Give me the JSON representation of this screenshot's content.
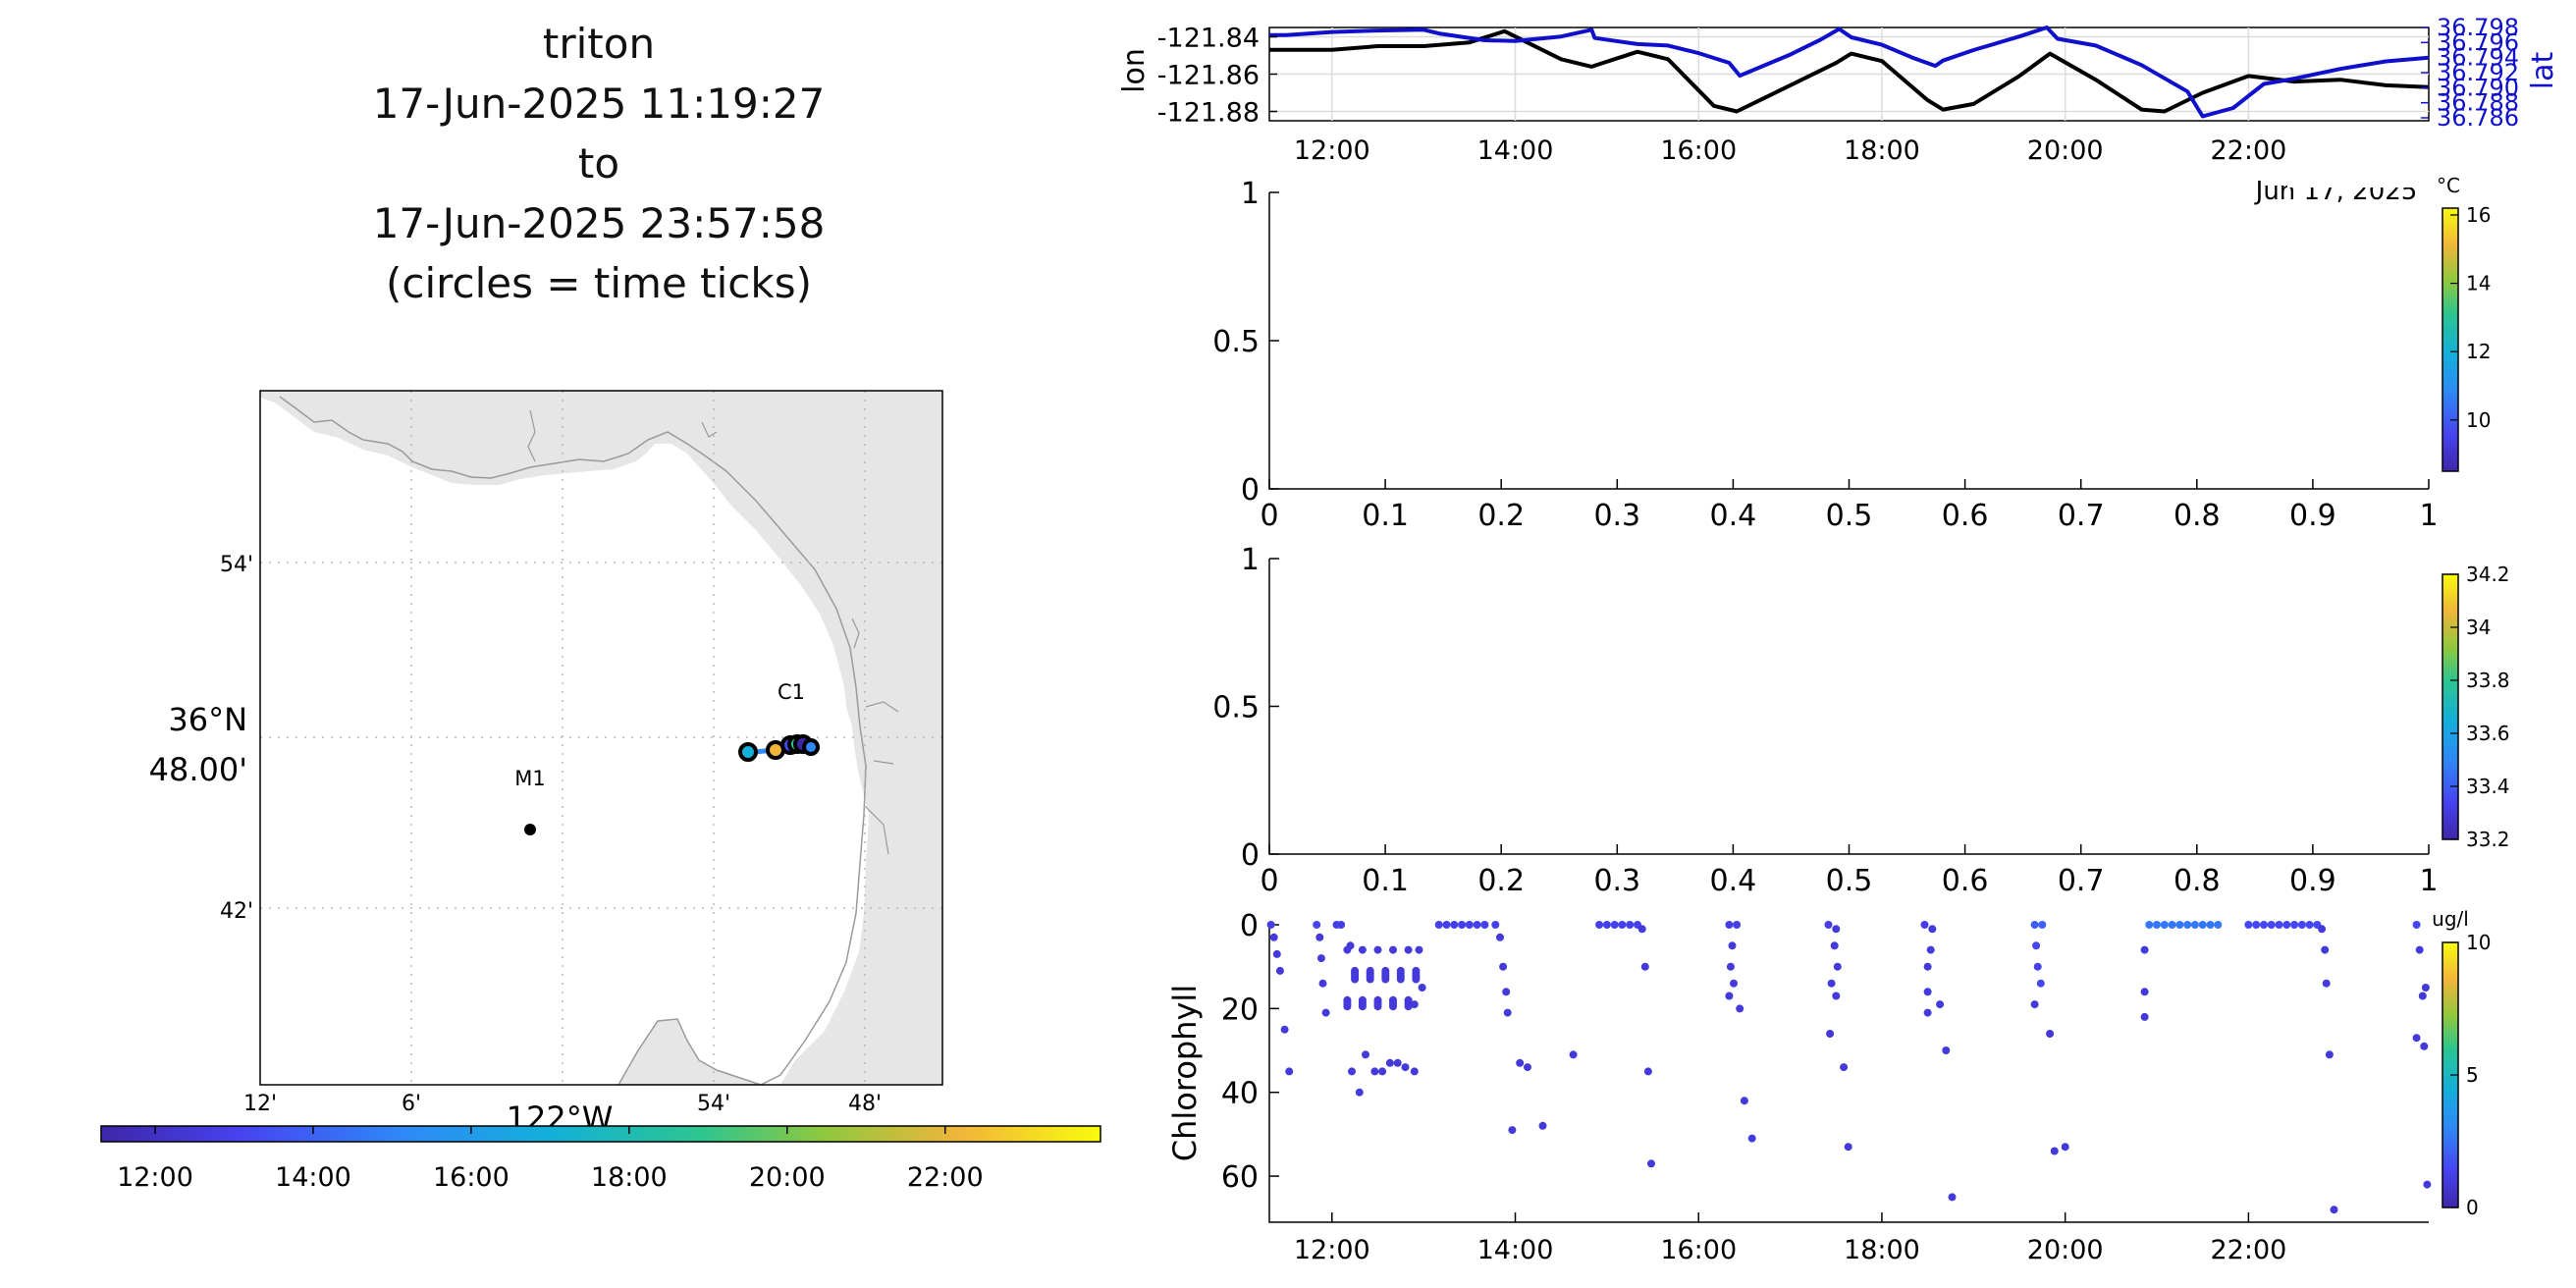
{
  "header": {
    "vehicle": "triton",
    "start_time": "17-Jun-2025 11:19:27",
    "connector": "to",
    "end_time": "17-Jun-2025 23:57:58",
    "note": "(circles = time ticks)"
  },
  "map": {
    "lat_ticks": [
      "54'",
      "48.00'",
      "42'"
    ],
    "lat_label": "36°N",
    "lon_ticks": [
      "12'",
      "6'",
      "54'",
      "48'"
    ],
    "lon_label": "122°W",
    "stations": [
      {
        "name": "C1"
      },
      {
        "name": "M1"
      }
    ],
    "colors": {
      "land": "#e6e6e6",
      "coast": "#9a9a9a",
      "grid": "#b8b8b8"
    }
  },
  "time_colorbar": {
    "ticks": [
      "12:00",
      "14:00",
      "16:00",
      "18:00",
      "20:00",
      "22:00"
    ],
    "colormap": [
      "#3e26a8",
      "#4743f0",
      "#2f88f8",
      "#13b0d9",
      "#2dc58f",
      "#8dc83f",
      "#f1b53a",
      "#f9fb0e"
    ]
  },
  "chart_data": [
    {
      "type": "line",
      "title": "",
      "xlabel": "Jun 17, 2025",
      "x_ticks": [
        "12:00",
        "14:00",
        "16:00",
        "18:00",
        "20:00",
        "22:00"
      ],
      "xlim": [
        "11:19",
        "23:58"
      ],
      "left_axis": {
        "label": "lon",
        "ticks": [
          "-121.84",
          "-121.86",
          "-121.88"
        ],
        "ylim": [
          -121.885,
          -121.835
        ]
      },
      "right_axis": {
        "label": "lat",
        "ticks": [
          "36.798",
          "36.796",
          "36.794",
          "36.792",
          "36.790",
          "36.788",
          "36.786"
        ],
        "ylim": [
          36.786,
          36.798
        ]
      },
      "grid": true,
      "series": [
        {
          "name": "lon",
          "axis": "left",
          "color": "#000000",
          "x": [
            "11:19",
            "12:00",
            "12:30",
            "13:00",
            "13:30",
            "13:53",
            "14:30",
            "14:50",
            "15:20",
            "15:40",
            "16:10",
            "16:25",
            "16:35",
            "17:00",
            "17:30",
            "17:40",
            "18:00",
            "18:30",
            "18:40",
            "19:00",
            "19:30",
            "19:50",
            "20:20",
            "20:50",
            "21:05",
            "21:30",
            "22:00",
            "22:30",
            "23:00",
            "23:30",
            "23:58"
          ],
          "values": [
            -121.847,
            -121.847,
            -121.845,
            -121.845,
            -121.843,
            -121.837,
            -121.852,
            -121.856,
            -121.848,
            -121.852,
            -121.877,
            -121.88,
            -121.876,
            -121.866,
            -121.854,
            -121.849,
            -121.853,
            -121.874,
            -121.879,
            -121.876,
            -121.861,
            -121.849,
            -121.863,
            -121.879,
            -121.88,
            -121.87,
            -121.861,
            -121.864,
            -121.863,
            -121.866,
            -121.867
          ]
        },
        {
          "name": "lat",
          "axis": "right",
          "color": "#1010cc",
          "x": [
            "11:19",
            "11:30",
            "12:00",
            "12:30",
            "13:00",
            "13:10",
            "13:40",
            "14:00",
            "14:30",
            "14:50",
            "14:52",
            "15:20",
            "15:40",
            "16:00",
            "16:20",
            "16:27",
            "16:40",
            "17:00",
            "17:20",
            "17:32",
            "17:40",
            "18:00",
            "18:20",
            "18:35",
            "18:40",
            "19:00",
            "19:30",
            "19:48",
            "19:55",
            "20:20",
            "20:50",
            "21:20",
            "21:30",
            "21:50",
            "22:10",
            "22:30",
            "23:00",
            "23:30",
            "23:58"
          ],
          "values": [
            36.797,
            36.797,
            36.7974,
            36.7976,
            36.7977,
            36.7972,
            36.7963,
            36.7962,
            36.7968,
            36.7977,
            36.7966,
            36.7958,
            36.7956,
            36.7946,
            36.7933,
            36.7916,
            36.7927,
            36.7944,
            36.7964,
            36.7978,
            36.7967,
            36.7957,
            36.794,
            36.7929,
            36.7936,
            36.795,
            36.7968,
            36.798,
            36.7965,
            36.7956,
            36.793,
            36.7895,
            36.7862,
            36.7873,
            36.7905,
            36.7912,
            36.7925,
            36.7935,
            36.794
          ]
        }
      ]
    },
    {
      "type": "scatter",
      "title": "",
      "xlabel": "",
      "ylabel": "",
      "x_ticks": [
        "0",
        "0.1",
        "0.2",
        "0.3",
        "0.4",
        "0.5",
        "0.6",
        "0.7",
        "0.8",
        "0.9",
        "1"
      ],
      "y_ticks": [
        "0",
        "0.5",
        "1"
      ],
      "xlim": [
        0,
        1
      ],
      "ylim": [
        0,
        1
      ],
      "points": [],
      "colorbar": {
        "unit": "°C",
        "ticks": [
          "16",
          "14",
          "12",
          "10"
        ],
        "clim": [
          8.5,
          16.2
        ]
      }
    },
    {
      "type": "scatter",
      "title": "",
      "xlabel": "",
      "ylabel": "",
      "x_ticks": [
        "0",
        "0.1",
        "0.2",
        "0.3",
        "0.4",
        "0.5",
        "0.6",
        "0.7",
        "0.8",
        "0.9",
        "1"
      ],
      "y_ticks": [
        "0",
        "0.5",
        "1"
      ],
      "xlim": [
        0,
        1
      ],
      "ylim": [
        0,
        1
      ],
      "points": [],
      "colorbar": {
        "unit": "",
        "ticks": [
          "34.2",
          "34",
          "33.8",
          "33.6",
          "33.4",
          "33.2"
        ],
        "clim": [
          33.2,
          34.2
        ]
      }
    },
    {
      "type": "scatter",
      "title": "",
      "xlabel": "",
      "ylabel": "Chlorophyll",
      "x_ticks": [
        "12:00",
        "14:00",
        "16:00",
        "18:00",
        "20:00",
        "22:00"
      ],
      "y_ticks": [
        "0",
        "20",
        "40",
        "60"
      ],
      "xlim": [
        "11:19",
        "23:58"
      ],
      "ylim": [
        71,
        0
      ],
      "y_reversed": true,
      "colorbar": {
        "unit": "ug/l",
        "ticks": [
          "10",
          "5",
          "0"
        ],
        "clim": [
          0,
          10
        ]
      },
      "points": [
        [
          "11:20",
          0,
          1.2
        ],
        [
          "11:22",
          3,
          1
        ],
        [
          "11:24",
          7,
          1
        ],
        [
          "11:26",
          11,
          1
        ],
        [
          "11:29",
          25,
          1
        ],
        [
          "11:32",
          35,
          1
        ],
        [
          "11:50",
          0,
          1.5
        ],
        [
          "11:52",
          3,
          1
        ],
        [
          "11:53",
          8,
          1
        ],
        [
          "11:54",
          14,
          1
        ],
        [
          "11:56",
          21,
          1
        ],
        [
          "12:03",
          0,
          1.2
        ],
        [
          "12:06",
          0,
          1.2
        ],
        [
          "12:12",
          5,
          1
        ],
        [
          "12:13",
          35,
          1
        ],
        [
          "12:18",
          40,
          1
        ],
        [
          "12:22",
          31,
          1
        ],
        [
          "12:28",
          35,
          1
        ],
        [
          "12:33",
          35,
          1
        ],
        [
          "12:38",
          33,
          1
        ],
        [
          "12:43",
          33,
          1
        ],
        [
          "12:48",
          34,
          1
        ],
        [
          "12:54",
          35,
          1
        ],
        [
          "12:57",
          6,
          1
        ],
        [
          "12:59",
          15,
          1
        ],
        [
          "12:54",
          19,
          1
        ],
        [
          "13:10",
          0,
          1.3
        ],
        [
          "13:15",
          0,
          1.3
        ],
        [
          "13:20",
          0,
          1.3
        ],
        [
          "13:25",
          0,
          1.3
        ],
        [
          "13:30",
          0,
          1.3
        ],
        [
          "13:35",
          0,
          1.3
        ],
        [
          "13:40",
          0,
          1.3
        ],
        [
          "13:47",
          0,
          1.3
        ],
        [
          "13:50",
          3,
          1
        ],
        [
          "13:52",
          10,
          1
        ],
        [
          "13:54",
          16,
          1
        ],
        [
          "13:55",
          21,
          1
        ],
        [
          "13:58",
          49,
          1
        ],
        [
          "14:03",
          33,
          1
        ],
        [
          "14:08",
          34,
          1
        ],
        [
          "14:18",
          48,
          1
        ],
        [
          "14:38",
          31,
          1
        ],
        [
          "14:55",
          0,
          1.3
        ],
        [
          "15:00",
          0,
          1.3
        ],
        [
          "15:05",
          0,
          1.3
        ],
        [
          "15:10",
          0,
          1.3
        ],
        [
          "15:15",
          0,
          1.3
        ],
        [
          "15:20",
          0,
          1.3
        ],
        [
          "15:23",
          1,
          1
        ],
        [
          "15:25",
          10,
          1
        ],
        [
          "15:27",
          35,
          1
        ],
        [
          "15:29",
          57,
          1
        ],
        [
          "16:20",
          0,
          1.2
        ],
        [
          "16:25",
          0,
          1.2
        ],
        [
          "16:22",
          5,
          1
        ],
        [
          "16:21",
          10,
          1
        ],
        [
          "16:23",
          14,
          1
        ],
        [
          "16:20",
          17,
          1
        ],
        [
          "16:27",
          20,
          1
        ],
        [
          "16:30",
          42,
          1
        ],
        [
          "16:35",
          51,
          1
        ],
        [
          "17:25",
          0,
          1.2
        ],
        [
          "17:30",
          1,
          1
        ],
        [
          "17:29",
          5,
          1
        ],
        [
          "17:31",
          10,
          1
        ],
        [
          "17:27",
          14,
          1
        ],
        [
          "17:30",
          17,
          1
        ],
        [
          "17:26",
          26,
          1
        ],
        [
          "17:35",
          34,
          1
        ],
        [
          "17:38",
          53,
          1
        ],
        [
          "18:28",
          0,
          1.2
        ],
        [
          "18:33",
          1,
          1
        ],
        [
          "18:32",
          6,
          1
        ],
        [
          "18:30",
          10,
          1
        ],
        [
          "18:30",
          16,
          1
        ],
        [
          "18:30",
          21,
          1
        ],
        [
          "18:38",
          19,
          1
        ],
        [
          "18:42",
          30,
          1
        ],
        [
          "18:46",
          65,
          1
        ],
        [
          "19:40",
          0,
          2
        ],
        [
          "19:45",
          0,
          2
        ],
        [
          "19:41",
          5,
          1.5
        ],
        [
          "19:42",
          10,
          1.3
        ],
        [
          "19:44",
          14,
          1.5
        ],
        [
          "19:40",
          19,
          1
        ],
        [
          "19:50",
          26,
          1
        ],
        [
          "19:53",
          54,
          1
        ],
        [
          "20:00",
          53,
          1
        ],
        [
          "20:55",
          0,
          2.5
        ],
        [
          "21:00",
          0,
          2.5
        ],
        [
          "21:05",
          0,
          2.5
        ],
        [
          "21:10",
          0,
          2.5
        ],
        [
          "21:15",
          0,
          2.5
        ],
        [
          "21:20",
          0,
          2.5
        ],
        [
          "21:25",
          0,
          2.5
        ],
        [
          "21:30",
          0,
          2.5
        ],
        [
          "21:35",
          0,
          2.5
        ],
        [
          "21:40",
          0,
          2.5
        ],
        [
          "20:52",
          6,
          1
        ],
        [
          "20:52",
          16,
          1
        ],
        [
          "20:52",
          22,
          1
        ],
        [
          "22:00",
          0,
          1.5
        ],
        [
          "22:05",
          0,
          1.5
        ],
        [
          "22:10",
          0,
          1.5
        ],
        [
          "22:15",
          0,
          1.5
        ],
        [
          "22:20",
          0,
          1.5
        ],
        [
          "22:25",
          0,
          1.5
        ],
        [
          "22:30",
          0,
          1.5
        ],
        [
          "22:35",
          0,
          1.5
        ],
        [
          "22:40",
          0,
          1.5
        ],
        [
          "22:45",
          0,
          1.5
        ],
        [
          "22:48",
          1,
          1
        ],
        [
          "22:50",
          6,
          1
        ],
        [
          "22:51",
          14,
          1
        ],
        [
          "22:53",
          31,
          1
        ],
        [
          "22:56",
          68,
          1
        ],
        [
          "23:50",
          0,
          1.5
        ],
        [
          "23:52",
          6,
          1
        ],
        [
          "23:54",
          17,
          1
        ],
        [
          "23:56",
          15,
          1
        ],
        [
          "23:50",
          27,
          1
        ],
        [
          "23:55",
          29,
          1
        ],
        [
          "23:57",
          62,
          1
        ]
      ]
    }
  ]
}
